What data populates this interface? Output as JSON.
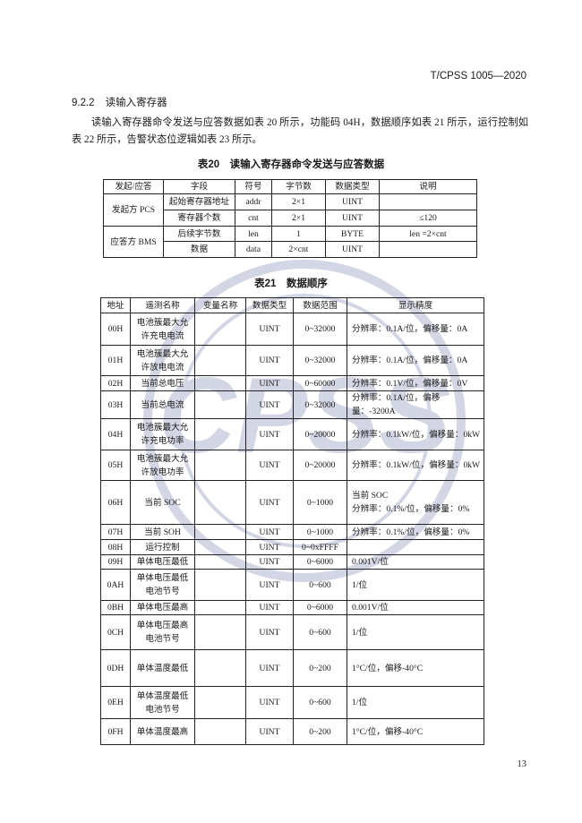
{
  "header": {
    "standard_code": "T/CPSS 1005—2020"
  },
  "section": {
    "number": "9.2.2",
    "title": "读输入寄存器"
  },
  "paragraph": "读输入寄存器命令发送与应答数据如表 20 所示，功能码 04H，数据顺序如表 21 所示，运行控制如表 22 所示，告警状态位逻辑如表 23 所示。",
  "table20": {
    "caption": "表20　读输入寄存器命令发送与应答数据",
    "headers": [
      "发起/应答",
      "字段",
      "符号",
      "字节数",
      "数据类型",
      "说明"
    ],
    "groups": [
      {
        "party": "发起方 PCS",
        "rows": [
          [
            "起始寄存器地址",
            "addr",
            "2×1",
            "UINT",
            ""
          ],
          [
            "寄存器个数",
            "cnt",
            "2×1",
            "UINT",
            "≤120"
          ]
        ]
      },
      {
        "party": "应答方 BMS",
        "rows": [
          [
            "后续字节数",
            "len",
            "1",
            "BYTE",
            "len =2×cnt"
          ],
          [
            "数据",
            "data",
            "2×cnt",
            "UINT",
            ""
          ]
        ]
      }
    ]
  },
  "table21": {
    "caption": "表21　数据顺序",
    "headers": [
      "地址",
      "遥测名称",
      "变量名称",
      "数据类型",
      "数据范围",
      "显示精度"
    ],
    "rows": [
      {
        "addr": "00H",
        "name": [
          "电池簇最大允",
          "许充电电流"
        ],
        "var": "",
        "type": "UINT",
        "range": "0~32000",
        "precision": [
          "分辨率：0.1A/位，偏移量：0A"
        ]
      },
      {
        "addr": "01H",
        "name": [
          "电池簇最大允",
          "许放电电流"
        ],
        "var": "",
        "type": "UINT",
        "range": "0~32000",
        "precision": [
          "分辨率：0.1A/位，偏移量：0A"
        ]
      },
      {
        "addr": "02H",
        "name": [
          "当前总电压"
        ],
        "var": "",
        "type": "UINT",
        "range": "0~60000",
        "precision": [
          "分辨率：0.1V/位，偏移量：0V"
        ]
      },
      {
        "addr": "03H",
        "name": [
          "当前总电流"
        ],
        "var": "",
        "type": "UINT",
        "range": "0~32000",
        "precision": [
          "分辨率：0.1A/位，偏移量：-3200A"
        ]
      },
      {
        "addr": "04H",
        "name": [
          "电池簇最大允",
          "许充电功率"
        ],
        "var": "",
        "type": "UINT",
        "range": "0~20000",
        "precision": [
          "分辨率：0.1kW/位，偏移量：0kW"
        ]
      },
      {
        "addr": "05H",
        "name": [
          "电池簇最大允",
          "许放电功率"
        ],
        "var": "",
        "type": "UINT",
        "range": "0~20000",
        "precision": [
          "分辨率：0.1kW/位，偏移量：0kW"
        ]
      },
      {
        "addr": "06H",
        "name": [
          "当前 SOC"
        ],
        "var": "",
        "type": "UINT",
        "range": "0~1000",
        "precision": [
          "当前 SOC",
          "分辨率：0.1%/位，偏移量：0%"
        ]
      },
      {
        "addr": "07H",
        "name": [
          "当前 SOH"
        ],
        "var": "",
        "type": "UINT",
        "range": "0~1000",
        "precision": [
          "分辨率：0.1%/位，偏移量：0%"
        ]
      },
      {
        "addr": "08H",
        "name": [
          "运行控制"
        ],
        "var": "",
        "type": "UINT",
        "range": "0~0xFFFF",
        "precision": [
          ""
        ]
      },
      {
        "addr": "09H",
        "name": [
          "单体电压最低"
        ],
        "var": "",
        "type": "UINT",
        "range": "0~6000",
        "precision": [
          "0.001V/位"
        ]
      },
      {
        "addr": "0AH",
        "name": [
          "单体电压最低",
          "电池节号"
        ],
        "var": "",
        "type": "UINT",
        "range": "0~600",
        "precision": [
          "1/位"
        ]
      },
      {
        "addr": "0BH",
        "name": [
          "单体电压最高"
        ],
        "var": "",
        "type": "UINT",
        "range": "0~6000",
        "precision": [
          "0.001V/位"
        ]
      },
      {
        "addr": "0CH",
        "name": [
          "单体电压最高",
          "电池节号"
        ],
        "var": "",
        "type": "UINT",
        "range": "0~600",
        "precision": [
          "1/位"
        ]
      },
      {
        "addr": "0DH",
        "name": [
          "单体温度最低"
        ],
        "var": "",
        "type": "UINT",
        "range": "0~200",
        "precision": [
          "1°C/位，偏移-40°C"
        ]
      },
      {
        "addr": "0EH",
        "name": [
          "单体温度最低",
          "电池节号"
        ],
        "var": "",
        "type": "UINT",
        "range": "0~600",
        "precision": [
          "1/位"
        ]
      },
      {
        "addr": "0FH",
        "name": [
          "单体温度最高"
        ],
        "var": "",
        "type": "UINT",
        "range": "0~200",
        "precision": [
          "1°C/位，偏移-40°C"
        ]
      }
    ]
  },
  "watermark": {
    "text": "CPSS",
    "ring_text": "China Power Supply Society"
  },
  "page_number": "13"
}
